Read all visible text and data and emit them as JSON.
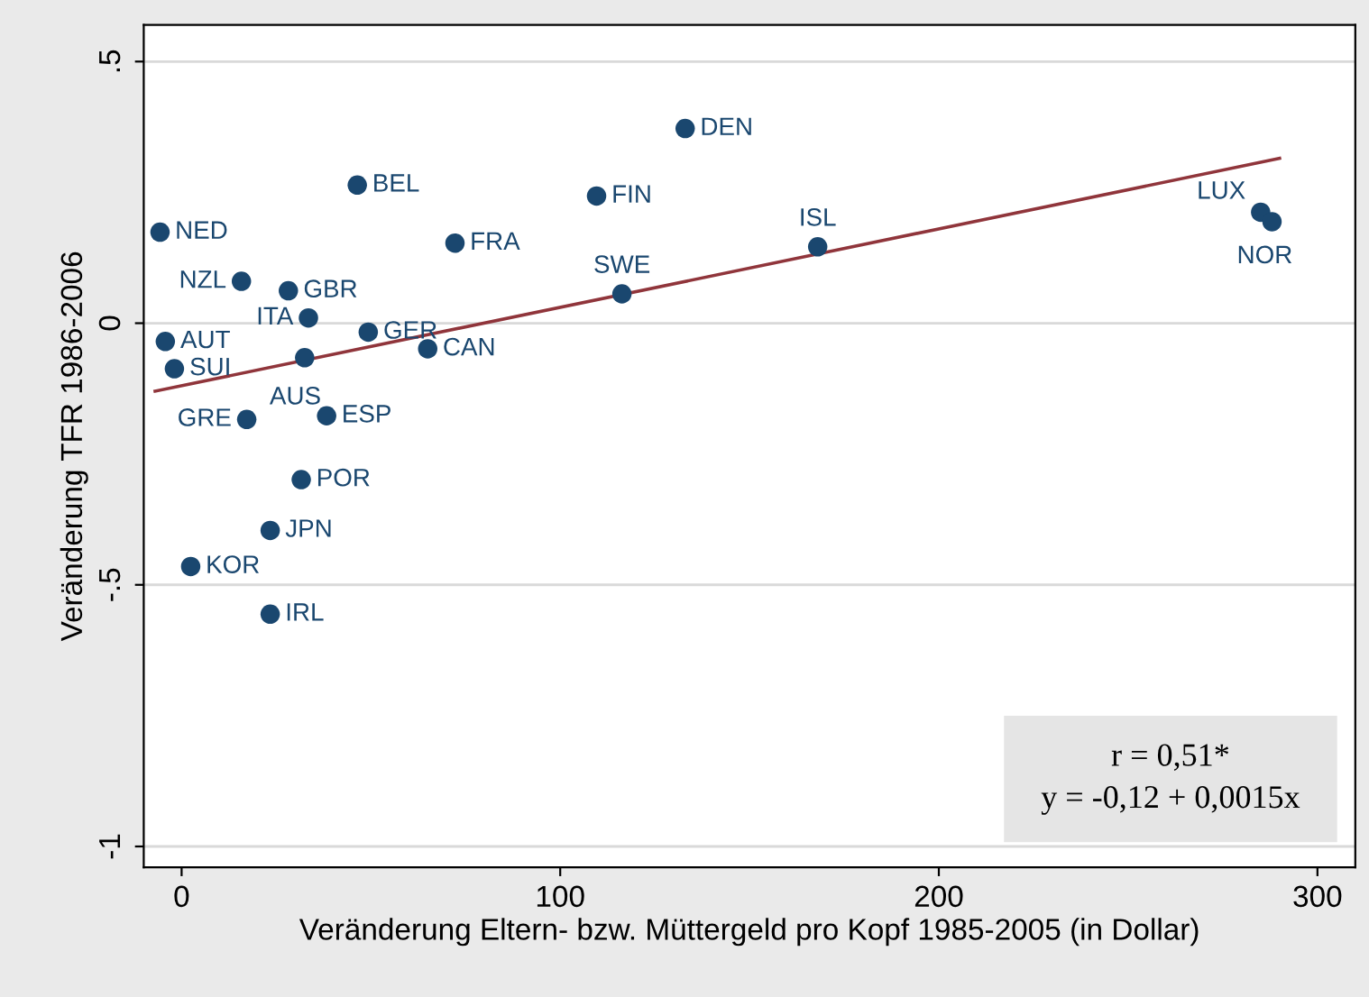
{
  "chart_data": {
    "type": "scatter",
    "xlabel": "Veränderung Eltern- bzw. Müttergeld pro Kopf 1985-2005 (in Dollar)",
    "ylabel": "Veränderung TFR 1986-2006",
    "x": [
      -5.7,
      15.8,
      28.2,
      33.5,
      -4.3,
      -1.9,
      49.3,
      65,
      32.5,
      17.2,
      38.3,
      31.6,
      23.4,
      2.4,
      23.4,
      46.4,
      72.2,
      109.6,
      133,
      116.3,
      168,
      285,
      288
    ],
    "series": [
      {
        "color": "#1a476f",
        "marker": "circle",
        "values": [
          0.174,
          0.08,
          0.062,
          0.01,
          -0.035,
          -0.087,
          -0.017,
          -0.049,
          -0.066,
          -0.184,
          -0.177,
          -0.299,
          -0.396,
          -0.465,
          -0.556,
          0.264,
          0.153,
          0.243,
          0.372,
          0.056,
          0.146,
          0.212,
          0.194
        ]
      },
      {
        "type": "line",
        "color": "#90353b",
        "marker": "none",
        "line_style": "solid",
        "x": [
          -7,
          290
        ],
        "values": [
          -0.13,
          0.315
        ]
      }
    ],
    "annotations": [
      {
        "text": "NED",
        "x": -5.7,
        "y": 0.174
      },
      {
        "text": "NZL",
        "x": 15.8,
        "y": 0.08
      },
      {
        "text": "GBR",
        "x": 28.2,
        "y": 0.062
      },
      {
        "text": "ITA",
        "x": 33.5,
        "y": 0.01
      },
      {
        "text": "AUT",
        "x": -4.3,
        "y": -0.035
      },
      {
        "text": "SUI",
        "x": -1.9,
        "y": -0.087
      },
      {
        "text": "GER",
        "x": 49.3,
        "y": -0.017
      },
      {
        "text": "CAN",
        "x": 65,
        "y": -0.049
      },
      {
        "text": "AUS",
        "x": 32.5,
        "y": -0.066
      },
      {
        "text": "GRE",
        "x": 17.2,
        "y": -0.184
      },
      {
        "text": "ESP",
        "x": 38.3,
        "y": -0.177
      },
      {
        "text": "POR",
        "x": 31.6,
        "y": -0.299
      },
      {
        "text": "JPN",
        "x": 23.4,
        "y": -0.396
      },
      {
        "text": "KOR",
        "x": 2.4,
        "y": -0.465
      },
      {
        "text": "IRL",
        "x": 23.4,
        "y": -0.556
      },
      {
        "text": "BEL",
        "x": 46.4,
        "y": 0.264
      },
      {
        "text": "FRA",
        "x": 72.2,
        "y": 0.153
      },
      {
        "text": "FIN",
        "x": 109.6,
        "y": 0.243
      },
      {
        "text": "DEN",
        "x": 133,
        "y": 0.372
      },
      {
        "text": "SWE",
        "x": 116.3,
        "y": 0.056
      },
      {
        "text": "ISL",
        "x": 168,
        "y": 0.146
      },
      {
        "text": "LUX",
        "x": 285,
        "y": 0.212
      },
      {
        "text": "NOR",
        "x": 288,
        "y": 0.194
      },
      "r = 0,51*",
      "y = -0,12 + 0,0015x"
    ],
    "xlim": [
      -10,
      310
    ],
    "ylim": [
      -1.04,
      0.57
    ],
    "xticks": [
      0,
      100,
      200,
      300
    ],
    "yticks": [
      {
        "value": 0.5,
        "label": ".5"
      },
      0,
      {
        "value": -0.5,
        "label": "-.5"
      },
      -1
    ],
    "grid": "y",
    "legend": false
  }
}
